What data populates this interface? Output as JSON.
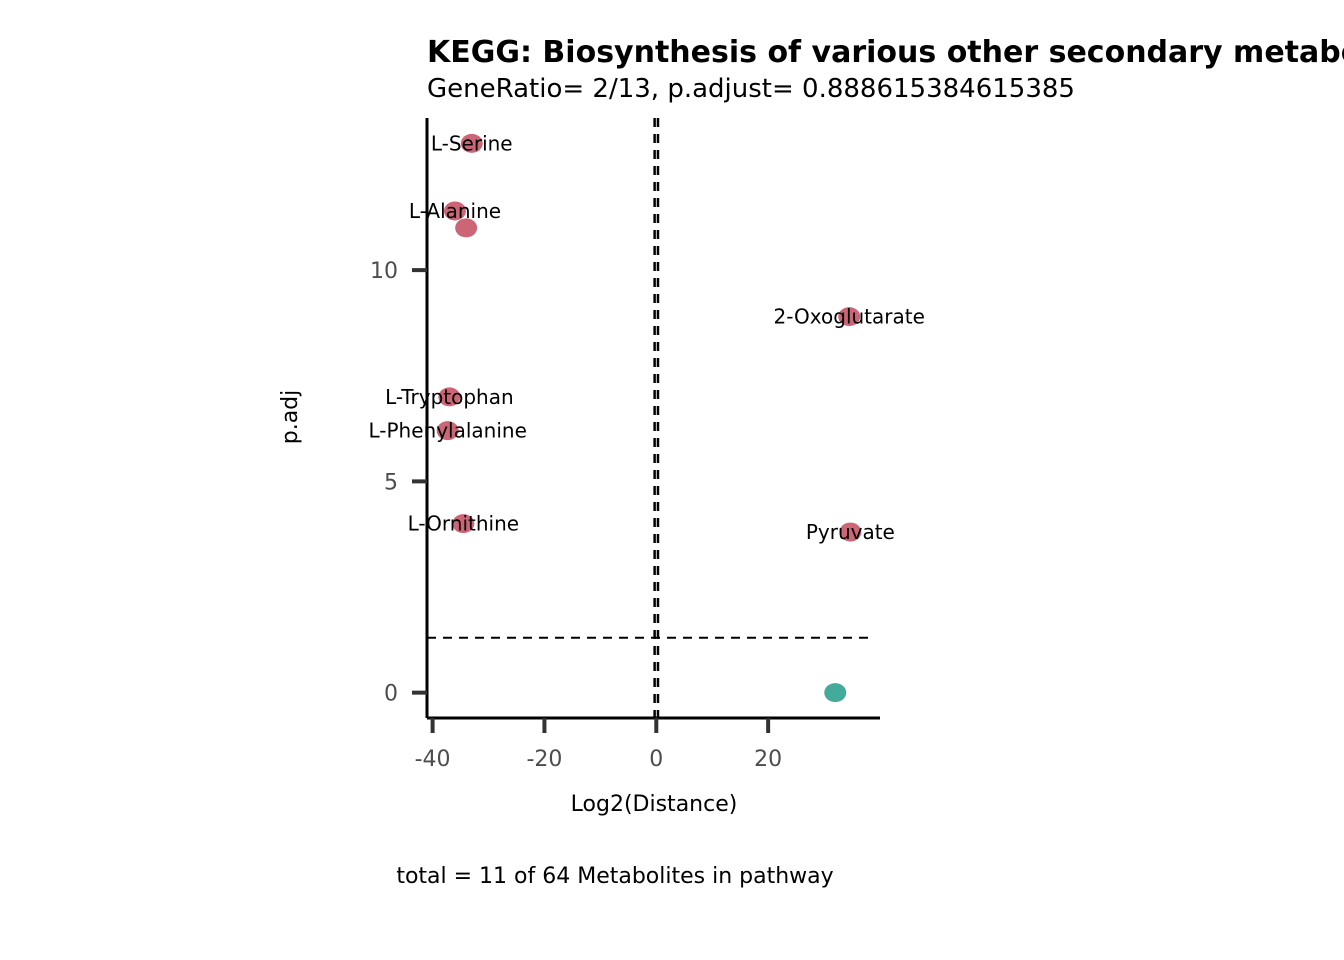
{
  "chart_data": {
    "type": "scatter",
    "title": "KEGG: Biosynthesis of various other secondary metabolites",
    "subtitle": "GeneRatio= 2/13, p.adjust= 0.888615384615385",
    "xlabel": "Log2(Distance)",
    "ylabel": "p.adj",
    "caption": "total = 11 of 64 Metabolites in pathway",
    "xlim": [
      -41,
      40
    ],
    "ylim": [
      -0.6,
      13.6
    ],
    "x_ticks": [
      -40,
      -20,
      0,
      20
    ],
    "y_ticks": [
      0,
      5,
      10
    ],
    "grid": false,
    "legend": "none",
    "reference_lines": {
      "vertical": [
        -0.3,
        0.3
      ],
      "horizontal": [
        1.3
      ]
    },
    "colors": {
      "significant": "#cc6677",
      "nonsignificant": "#44aa99"
    },
    "points": [
      {
        "label": "L-Serine",
        "x": -33,
        "y": 13.0,
        "group": "significant"
      },
      {
        "label": "L-Alanine",
        "x": -36,
        "y": 11.4,
        "group": "significant"
      },
      {
        "label": "",
        "x": -34,
        "y": 11.0,
        "group": "significant"
      },
      {
        "label": "2-Oxoglutarate",
        "x": 34.5,
        "y": 8.9,
        "group": "significant"
      },
      {
        "label": "L-Tryptophan",
        "x": -37,
        "y": 7.0,
        "group": "significant"
      },
      {
        "label": "L-Phenylalanine",
        "x": -37.3,
        "y": 6.2,
        "group": "significant"
      },
      {
        "label": "L-Ornithine",
        "x": -34.5,
        "y": 4.0,
        "group": "significant"
      },
      {
        "label": "Pyruvate",
        "x": 34.7,
        "y": 3.8,
        "group": "significant"
      },
      {
        "label": "",
        "x": 32,
        "y": 0.0,
        "group": "nonsignificant"
      }
    ]
  }
}
